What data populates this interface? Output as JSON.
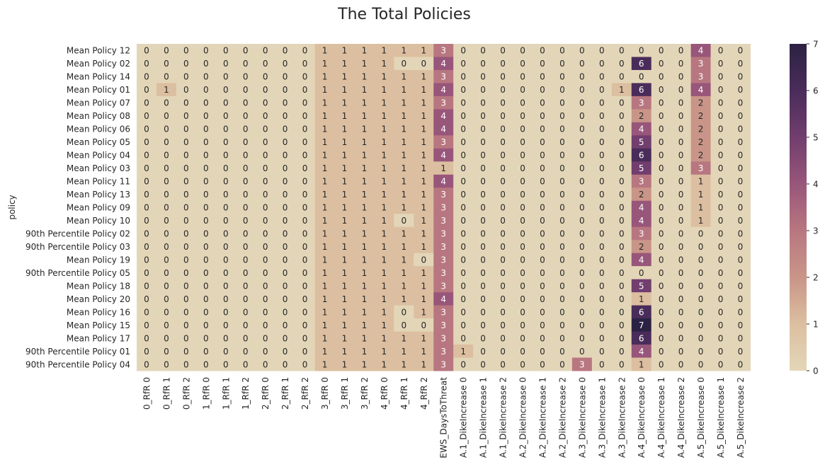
{
  "chart_data": {
    "type": "heatmap",
    "title": "The Total Policies",
    "ylabel": "policy",
    "xlabel": "",
    "columns": [
      "0_RfR 0",
      "0_RfR 1",
      "0_RfR 2",
      "1_RfR 0",
      "1_RfR 1",
      "1_RfR 2",
      "2_RfR 0",
      "2_RfR 1",
      "2_RfR 2",
      "3_RfR 0",
      "3_RfR 1",
      "3_RfR 2",
      "4_RfR 0",
      "4_RfR 1",
      "4_RfR 2",
      "EWS_DaysToThreat",
      "A.1_DikeIncrease 0",
      "A.1_DikeIncrease 1",
      "A.1_DikeIncrease 2",
      "A.2_DikeIncrease 0",
      "A.2_DikeIncrease 1",
      "A.2_DikeIncrease 2",
      "A.3_DikeIncrease 0",
      "A.3_DikeIncrease 1",
      "A.3_DikeIncrease 2",
      "A.4_DikeIncrease 0",
      "A.4_DikeIncrease 1",
      "A.4_DikeIncrease 2",
      "A.5_DikeIncrease 0",
      "A.5_DikeIncrease 1",
      "A.5_DikeIncrease 2"
    ],
    "rows": [
      "Mean Policy 12",
      "Mean Policy 02",
      "Mean Policy 14",
      "Mean Policy 01",
      "Mean Policy 07",
      "Mean Policy 08",
      "Mean Policy 06",
      "Mean Policy 05",
      "Mean Policy 04",
      "Mean Policy 03",
      "Mean Policy 11",
      "Mean Policy 13",
      "Mean Policy 09",
      "Mean Policy 10",
      "90th Percentile Policy 02",
      "90th Percentile Policy 03",
      "Mean Policy 19",
      "90th Percentile Policy 05",
      "Mean Policy 18",
      "Mean Policy 20",
      "Mean Policy 16",
      "Mean Policy 15",
      "Mean Policy 17",
      "90th Percentile Policy 01",
      "90th Percentile Policy 04"
    ],
    "values": [
      [
        0,
        0,
        0,
        0,
        0,
        0,
        0,
        0,
        0,
        1,
        1,
        1,
        1,
        1,
        1,
        3,
        0,
        0,
        0,
        0,
        0,
        0,
        0,
        0,
        0,
        0,
        0,
        0,
        4,
        0,
        0
      ],
      [
        0,
        0,
        0,
        0,
        0,
        0,
        0,
        0,
        0,
        1,
        1,
        1,
        1,
        0,
        0,
        4,
        0,
        0,
        0,
        0,
        0,
        0,
        0,
        0,
        0,
        6,
        0,
        0,
        3,
        0,
        0
      ],
      [
        0,
        0,
        0,
        0,
        0,
        0,
        0,
        0,
        0,
        1,
        1,
        1,
        1,
        1,
        1,
        3,
        0,
        0,
        0,
        0,
        0,
        0,
        0,
        0,
        0,
        0,
        0,
        0,
        3,
        0,
        0
      ],
      [
        0,
        1,
        0,
        0,
        0,
        0,
        0,
        0,
        0,
        1,
        1,
        1,
        1,
        1,
        1,
        4,
        0,
        0,
        0,
        0,
        0,
        0,
        0,
        0,
        1,
        6,
        0,
        0,
        4,
        0,
        0
      ],
      [
        0,
        0,
        0,
        0,
        0,
        0,
        0,
        0,
        0,
        1,
        1,
        1,
        1,
        1,
        1,
        3,
        0,
        0,
        0,
        0,
        0,
        0,
        0,
        0,
        0,
        3,
        0,
        0,
        2,
        0,
        0
      ],
      [
        0,
        0,
        0,
        0,
        0,
        0,
        0,
        0,
        0,
        1,
        1,
        1,
        1,
        1,
        1,
        4,
        0,
        0,
        0,
        0,
        0,
        0,
        0,
        0,
        0,
        2,
        0,
        0,
        2,
        0,
        0
      ],
      [
        0,
        0,
        0,
        0,
        0,
        0,
        0,
        0,
        0,
        1,
        1,
        1,
        1,
        1,
        1,
        4,
        0,
        0,
        0,
        0,
        0,
        0,
        0,
        0,
        0,
        4,
        0,
        0,
        2,
        0,
        0
      ],
      [
        0,
        0,
        0,
        0,
        0,
        0,
        0,
        0,
        0,
        1,
        1,
        1,
        1,
        1,
        1,
        3,
        0,
        0,
        0,
        0,
        0,
        0,
        0,
        0,
        0,
        5,
        0,
        0,
        2,
        0,
        0
      ],
      [
        0,
        0,
        0,
        0,
        0,
        0,
        0,
        0,
        0,
        1,
        1,
        1,
        1,
        1,
        1,
        4,
        0,
        0,
        0,
        0,
        0,
        0,
        0,
        0,
        0,
        6,
        0,
        0,
        2,
        0,
        0
      ],
      [
        0,
        0,
        0,
        0,
        0,
        0,
        0,
        0,
        0,
        1,
        1,
        1,
        1,
        1,
        1,
        1,
        0,
        0,
        0,
        0,
        0,
        0,
        0,
        0,
        0,
        5,
        0,
        0,
        3,
        0,
        0
      ],
      [
        0,
        0,
        0,
        0,
        0,
        0,
        0,
        0,
        0,
        1,
        1,
        1,
        1,
        1,
        1,
        4,
        0,
        0,
        0,
        0,
        0,
        0,
        0,
        0,
        0,
        3,
        0,
        0,
        1,
        0,
        0
      ],
      [
        0,
        0,
        0,
        0,
        0,
        0,
        0,
        0,
        0,
        1,
        1,
        1,
        1,
        1,
        1,
        3,
        0,
        0,
        0,
        0,
        0,
        0,
        0,
        0,
        0,
        2,
        0,
        0,
        1,
        0,
        0
      ],
      [
        0,
        0,
        0,
        0,
        0,
        0,
        0,
        0,
        0,
        1,
        1,
        1,
        1,
        1,
        1,
        3,
        0,
        0,
        0,
        0,
        0,
        0,
        0,
        0,
        0,
        4,
        0,
        0,
        1,
        0,
        0
      ],
      [
        0,
        0,
        0,
        0,
        0,
        0,
        0,
        0,
        0,
        1,
        1,
        1,
        1,
        0,
        1,
        3,
        0,
        0,
        0,
        0,
        0,
        0,
        0,
        0,
        0,
        4,
        0,
        0,
        1,
        0,
        0
      ],
      [
        0,
        0,
        0,
        0,
        0,
        0,
        0,
        0,
        0,
        1,
        1,
        1,
        1,
        1,
        1,
        3,
        0,
        0,
        0,
        0,
        0,
        0,
        0,
        0,
        0,
        3,
        0,
        0,
        0,
        0,
        0
      ],
      [
        0,
        0,
        0,
        0,
        0,
        0,
        0,
        0,
        0,
        1,
        1,
        1,
        1,
        1,
        1,
        3,
        0,
        0,
        0,
        0,
        0,
        0,
        0,
        0,
        0,
        2,
        0,
        0,
        0,
        0,
        0
      ],
      [
        0,
        0,
        0,
        0,
        0,
        0,
        0,
        0,
        0,
        1,
        1,
        1,
        1,
        1,
        0,
        3,
        0,
        0,
        0,
        0,
        0,
        0,
        0,
        0,
        0,
        4,
        0,
        0,
        0,
        0,
        0
      ],
      [
        0,
        0,
        0,
        0,
        0,
        0,
        0,
        0,
        0,
        1,
        1,
        1,
        1,
        1,
        1,
        3,
        0,
        0,
        0,
        0,
        0,
        0,
        0,
        0,
        0,
        0,
        0,
        0,
        0,
        0,
        0
      ],
      [
        0,
        0,
        0,
        0,
        0,
        0,
        0,
        0,
        0,
        1,
        1,
        1,
        1,
        1,
        1,
        3,
        0,
        0,
        0,
        0,
        0,
        0,
        0,
        0,
        0,
        5,
        0,
        0,
        0,
        0,
        0
      ],
      [
        0,
        0,
        0,
        0,
        0,
        0,
        0,
        0,
        0,
        1,
        1,
        1,
        1,
        1,
        1,
        4,
        0,
        0,
        0,
        0,
        0,
        0,
        0,
        0,
        0,
        1,
        0,
        0,
        0,
        0,
        0
      ],
      [
        0,
        0,
        0,
        0,
        0,
        0,
        0,
        0,
        0,
        1,
        1,
        1,
        1,
        0,
        1,
        3,
        0,
        0,
        0,
        0,
        0,
        0,
        0,
        0,
        0,
        6,
        0,
        0,
        0,
        0,
        0
      ],
      [
        0,
        0,
        0,
        0,
        0,
        0,
        0,
        0,
        0,
        1,
        1,
        1,
        1,
        0,
        0,
        3,
        0,
        0,
        0,
        0,
        0,
        0,
        0,
        0,
        0,
        7,
        0,
        0,
        0,
        0,
        0
      ],
      [
        0,
        0,
        0,
        0,
        0,
        0,
        0,
        0,
        0,
        1,
        1,
        1,
        1,
        1,
        1,
        3,
        0,
        0,
        0,
        0,
        0,
        0,
        0,
        0,
        0,
        6,
        0,
        0,
        0,
        0,
        0
      ],
      [
        0,
        0,
        0,
        0,
        0,
        0,
        0,
        0,
        0,
        1,
        1,
        1,
        1,
        1,
        1,
        3,
        1,
        0,
        0,
        0,
        0,
        0,
        0,
        0,
        0,
        4,
        0,
        0,
        0,
        0,
        0
      ],
      [
        0,
        0,
        0,
        0,
        0,
        0,
        0,
        0,
        0,
        1,
        1,
        1,
        1,
        1,
        1,
        3,
        0,
        0,
        0,
        0,
        0,
        0,
        3,
        0,
        0,
        1,
        0,
        0,
        0,
        0,
        0
      ]
    ],
    "vmin": 0,
    "vmax": 7,
    "colorbar_ticks": [
      0,
      1,
      2,
      3,
      4,
      5,
      6,
      7
    ],
    "colormap_stops": [
      "#e3d6b8",
      "#dcbfa0",
      "#c99588",
      "#b87780",
      "#98567a",
      "#713e6e",
      "#4a2c5a",
      "#2b2243"
    ],
    "grid": false
  }
}
